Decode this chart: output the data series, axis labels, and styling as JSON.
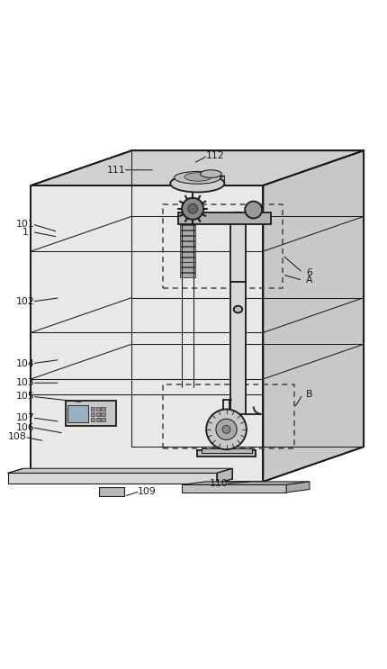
{
  "bg_color": "#ffffff",
  "line_color": "#1a1a1a",
  "figsize": [
    4.3,
    7.43
  ],
  "dpi": 100,
  "body": {
    "fl": 0.08,
    "fr": 0.68,
    "ft": 0.115,
    "fb": 0.88,
    "ox": 0.26,
    "oy": 0.09,
    "front_fill": "#e8e8e8",
    "top_fill": "#d0d0d0",
    "right_fill": "#c8c8c8"
  },
  "sections": {
    "s1y": 0.285,
    "s2y": 0.495,
    "s3y": 0.615,
    "s4y": 0.655
  },
  "dashed_A": [
    0.42,
    0.165,
    0.73,
    0.38
  ],
  "dashed_B": [
    0.42,
    0.63,
    0.76,
    0.795
  ],
  "labels": {
    "112": [
      0.555,
      0.038,
      0.5,
      0.058
    ],
    "111": [
      0.3,
      0.075,
      0.4,
      0.075
    ],
    "101": [
      0.065,
      0.215,
      0.15,
      0.235
    ],
    "1": [
      0.065,
      0.235,
      0.15,
      0.248
    ],
    "6": [
      0.8,
      0.34,
      0.73,
      0.295
    ],
    "A": [
      0.8,
      0.36,
      0.73,
      0.345
    ],
    "102": [
      0.065,
      0.415,
      0.155,
      0.405
    ],
    "104": [
      0.065,
      0.575,
      0.155,
      0.565
    ],
    "103": [
      0.065,
      0.625,
      0.155,
      0.625
    ],
    "105": [
      0.065,
      0.66,
      0.215,
      0.675
    ],
    "B": [
      0.8,
      0.655,
      0.76,
      0.69
    ],
    "107": [
      0.065,
      0.715,
      0.155,
      0.725
    ],
    "106": [
      0.065,
      0.74,
      0.165,
      0.755
    ],
    "108": [
      0.045,
      0.765,
      0.115,
      0.775
    ],
    "109": [
      0.38,
      0.905,
      0.32,
      0.918
    ],
    "110": [
      0.565,
      0.885,
      0.65,
      0.88
    ]
  }
}
